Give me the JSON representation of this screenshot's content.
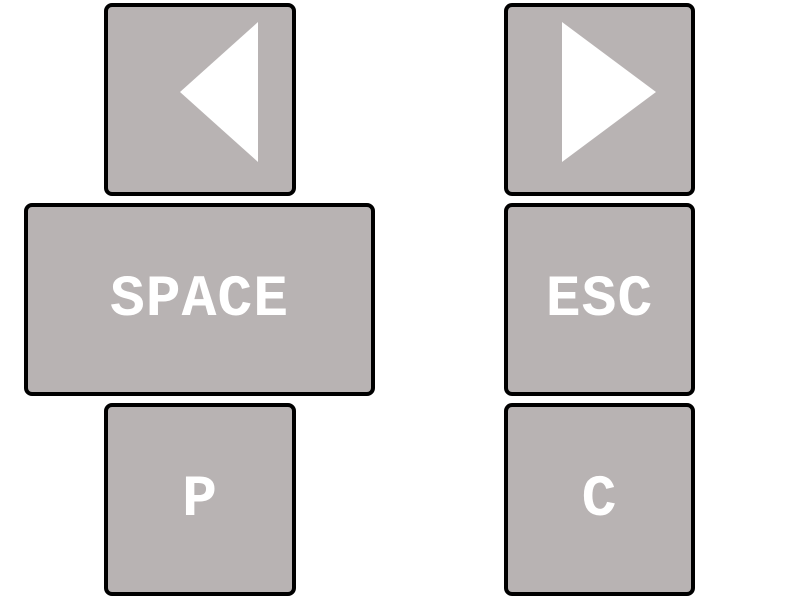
{
  "colors": {
    "key_fill": "#b8b3b3",
    "key_border": "#000000",
    "label": "#ffffff",
    "background": "#ffffff"
  },
  "keys": {
    "left": {
      "icon": "left-triangle-icon"
    },
    "right": {
      "icon": "right-triangle-icon"
    },
    "space": {
      "label": "SPACE"
    },
    "esc": {
      "label": "ESC"
    },
    "p": {
      "label": "P"
    },
    "c": {
      "label": "C"
    }
  }
}
